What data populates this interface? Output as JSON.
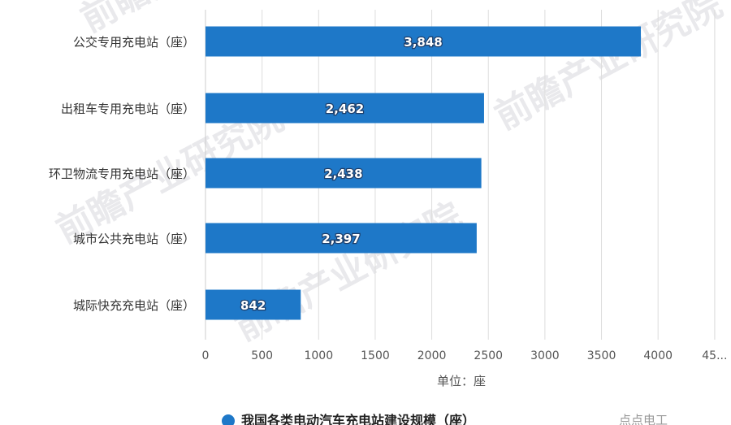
{
  "chart_data": {
    "type": "bar",
    "orientation": "horizontal",
    "categories": [
      "公交专用充电站（座）",
      "出租车专用充电站（座）",
      "环卫物流专用充电站（座）",
      "城市公共充电站（座）",
      "城际快充充电站（座）"
    ],
    "values": [
      3848,
      2462,
      2438,
      2397,
      842
    ],
    "value_labels": [
      "3,848",
      "2,462",
      "2,438",
      "2,397",
      "842"
    ],
    "xticks": [
      "0",
      "500",
      "1000",
      "1500",
      "2000",
      "2500",
      "3000",
      "3500",
      "4000",
      "45..."
    ],
    "xlim": [
      0,
      4500
    ],
    "xlabel": "单位：座",
    "legend": {
      "label": "我国各类电动汽车充电站建设规模（座）",
      "position": "bottom-center"
    },
    "grid": true,
    "colors": {
      "bar": "#1e78c8",
      "grid": "#dddddd",
      "legend_marker": "#1e78c8"
    }
  },
  "watermark": "前瞻产业研究院",
  "credit": "点点电工"
}
